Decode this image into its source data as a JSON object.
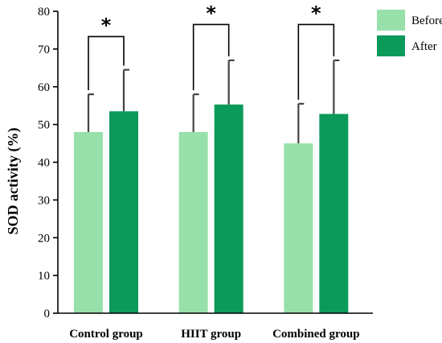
{
  "chart_data": {
    "type": "bar",
    "title": "",
    "xlabel": "",
    "ylabel": "SOD activity (%)",
    "ylim": [
      0,
      80
    ],
    "yticks": [
      0,
      10,
      20,
      30,
      40,
      50,
      60,
      70,
      80
    ],
    "grid": false,
    "legend": "top-right",
    "categories": [
      "Control group",
      "HIIT group",
      "Combined group"
    ],
    "series": [
      {
        "name": "Before",
        "color": "#98e0aa",
        "values": [
          48,
          48,
          45
        ],
        "error_upper": [
          58,
          58,
          55.5
        ]
      },
      {
        "name": "After",
        "color": "#0c9a5b",
        "values": [
          53.5,
          55.3,
          52.8
        ],
        "error_upper": [
          64.5,
          67,
          67
        ]
      }
    ],
    "annotations": [
      {
        "category": "Control group",
        "text": "*",
        "bracket_y": 73.3
      },
      {
        "category": "HIIT group",
        "text": "*",
        "bracket_y": 76.5
      },
      {
        "category": "Combined group",
        "text": "*",
        "bracket_y": 76.5
      }
    ]
  }
}
